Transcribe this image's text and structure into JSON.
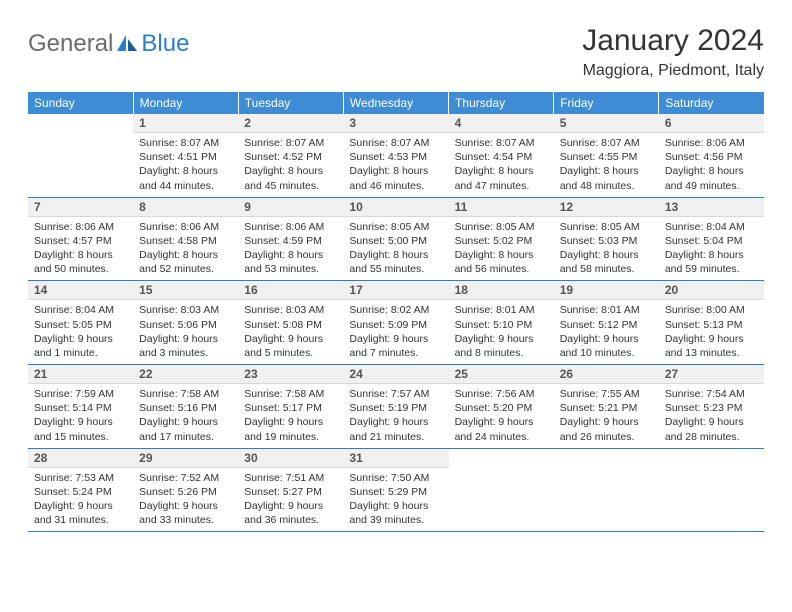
{
  "logo": {
    "text1": "General",
    "text2": "Blue"
  },
  "header": {
    "month": "January 2024",
    "location": "Maggiora, Piedmont, Italy"
  },
  "colors": {
    "header_bg": "#3e8cd3",
    "header_text": "#ffffff",
    "border": "#2d7dc9",
    "daynum_bg": "#f0f0f0",
    "logo_gray": "#6b6b6b",
    "logo_blue": "#2d7dc9",
    "text": "#333333"
  },
  "days_of_week": [
    "Sunday",
    "Monday",
    "Tuesday",
    "Wednesday",
    "Thursday",
    "Friday",
    "Saturday"
  ],
  "first_weekday_index": 1,
  "cells": [
    {
      "n": "1",
      "sr": "Sunrise: 8:07 AM",
      "ss": "Sunset: 4:51 PM",
      "dl": "Daylight: 8 hours and 44 minutes."
    },
    {
      "n": "2",
      "sr": "Sunrise: 8:07 AM",
      "ss": "Sunset: 4:52 PM",
      "dl": "Daylight: 8 hours and 45 minutes."
    },
    {
      "n": "3",
      "sr": "Sunrise: 8:07 AM",
      "ss": "Sunset: 4:53 PM",
      "dl": "Daylight: 8 hours and 46 minutes."
    },
    {
      "n": "4",
      "sr": "Sunrise: 8:07 AM",
      "ss": "Sunset: 4:54 PM",
      "dl": "Daylight: 8 hours and 47 minutes."
    },
    {
      "n": "5",
      "sr": "Sunrise: 8:07 AM",
      "ss": "Sunset: 4:55 PM",
      "dl": "Daylight: 8 hours and 48 minutes."
    },
    {
      "n": "6",
      "sr": "Sunrise: 8:06 AM",
      "ss": "Sunset: 4:56 PM",
      "dl": "Daylight: 8 hours and 49 minutes."
    },
    {
      "n": "7",
      "sr": "Sunrise: 8:06 AM",
      "ss": "Sunset: 4:57 PM",
      "dl": "Daylight: 8 hours and 50 minutes."
    },
    {
      "n": "8",
      "sr": "Sunrise: 8:06 AM",
      "ss": "Sunset: 4:58 PM",
      "dl": "Daylight: 8 hours and 52 minutes."
    },
    {
      "n": "9",
      "sr": "Sunrise: 8:06 AM",
      "ss": "Sunset: 4:59 PM",
      "dl": "Daylight: 8 hours and 53 minutes."
    },
    {
      "n": "10",
      "sr": "Sunrise: 8:05 AM",
      "ss": "Sunset: 5:00 PM",
      "dl": "Daylight: 8 hours and 55 minutes."
    },
    {
      "n": "11",
      "sr": "Sunrise: 8:05 AM",
      "ss": "Sunset: 5:02 PM",
      "dl": "Daylight: 8 hours and 56 minutes."
    },
    {
      "n": "12",
      "sr": "Sunrise: 8:05 AM",
      "ss": "Sunset: 5:03 PM",
      "dl": "Daylight: 8 hours and 58 minutes."
    },
    {
      "n": "13",
      "sr": "Sunrise: 8:04 AM",
      "ss": "Sunset: 5:04 PM",
      "dl": "Daylight: 8 hours and 59 minutes."
    },
    {
      "n": "14",
      "sr": "Sunrise: 8:04 AM",
      "ss": "Sunset: 5:05 PM",
      "dl": "Daylight: 9 hours and 1 minute."
    },
    {
      "n": "15",
      "sr": "Sunrise: 8:03 AM",
      "ss": "Sunset: 5:06 PM",
      "dl": "Daylight: 9 hours and 3 minutes."
    },
    {
      "n": "16",
      "sr": "Sunrise: 8:03 AM",
      "ss": "Sunset: 5:08 PM",
      "dl": "Daylight: 9 hours and 5 minutes."
    },
    {
      "n": "17",
      "sr": "Sunrise: 8:02 AM",
      "ss": "Sunset: 5:09 PM",
      "dl": "Daylight: 9 hours and 7 minutes."
    },
    {
      "n": "18",
      "sr": "Sunrise: 8:01 AM",
      "ss": "Sunset: 5:10 PM",
      "dl": "Daylight: 9 hours and 8 minutes."
    },
    {
      "n": "19",
      "sr": "Sunrise: 8:01 AM",
      "ss": "Sunset: 5:12 PM",
      "dl": "Daylight: 9 hours and 10 minutes."
    },
    {
      "n": "20",
      "sr": "Sunrise: 8:00 AM",
      "ss": "Sunset: 5:13 PM",
      "dl": "Daylight: 9 hours and 13 minutes."
    },
    {
      "n": "21",
      "sr": "Sunrise: 7:59 AM",
      "ss": "Sunset: 5:14 PM",
      "dl": "Daylight: 9 hours and 15 minutes."
    },
    {
      "n": "22",
      "sr": "Sunrise: 7:58 AM",
      "ss": "Sunset: 5:16 PM",
      "dl": "Daylight: 9 hours and 17 minutes."
    },
    {
      "n": "23",
      "sr": "Sunrise: 7:58 AM",
      "ss": "Sunset: 5:17 PM",
      "dl": "Daylight: 9 hours and 19 minutes."
    },
    {
      "n": "24",
      "sr": "Sunrise: 7:57 AM",
      "ss": "Sunset: 5:19 PM",
      "dl": "Daylight: 9 hours and 21 minutes."
    },
    {
      "n": "25",
      "sr": "Sunrise: 7:56 AM",
      "ss": "Sunset: 5:20 PM",
      "dl": "Daylight: 9 hours and 24 minutes."
    },
    {
      "n": "26",
      "sr": "Sunrise: 7:55 AM",
      "ss": "Sunset: 5:21 PM",
      "dl": "Daylight: 9 hours and 26 minutes."
    },
    {
      "n": "27",
      "sr": "Sunrise: 7:54 AM",
      "ss": "Sunset: 5:23 PM",
      "dl": "Daylight: 9 hours and 28 minutes."
    },
    {
      "n": "28",
      "sr": "Sunrise: 7:53 AM",
      "ss": "Sunset: 5:24 PM",
      "dl": "Daylight: 9 hours and 31 minutes."
    },
    {
      "n": "29",
      "sr": "Sunrise: 7:52 AM",
      "ss": "Sunset: 5:26 PM",
      "dl": "Daylight: 9 hours and 33 minutes."
    },
    {
      "n": "30",
      "sr": "Sunrise: 7:51 AM",
      "ss": "Sunset: 5:27 PM",
      "dl": "Daylight: 9 hours and 36 minutes."
    },
    {
      "n": "31",
      "sr": "Sunrise: 7:50 AM",
      "ss": "Sunset: 5:29 PM",
      "dl": "Daylight: 9 hours and 39 minutes."
    }
  ]
}
